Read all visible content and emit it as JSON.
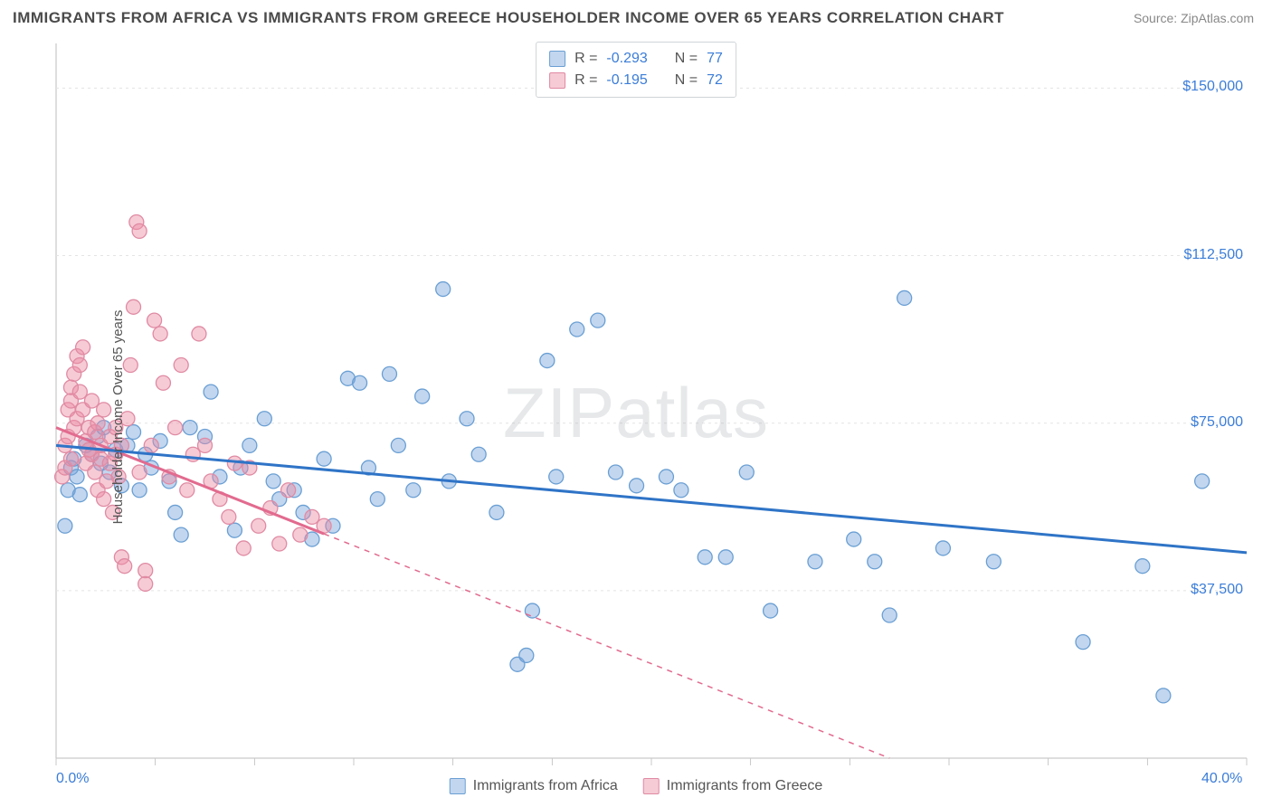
{
  "header": {
    "title": "IMMIGRANTS FROM AFRICA VS IMMIGRANTS FROM GREECE HOUSEHOLDER INCOME OVER 65 YEARS CORRELATION CHART",
    "source_label": "Source:",
    "source_name": "ZipAtlas.com"
  },
  "watermark": "ZIPatlas",
  "chart": {
    "type": "scatter",
    "ylabel": "Householder Income Over 65 years",
    "xlim": [
      0,
      40
    ],
    "ylim": [
      0,
      160000
    ],
    "x_ticks": [
      0,
      40
    ],
    "x_tick_labels": [
      "0.0%",
      "40.0%"
    ],
    "x_minor_ticks": [
      3.33,
      6.67,
      10,
      13.33,
      16.67,
      20,
      23.33,
      26.67,
      30,
      33.33,
      36.67
    ],
    "y_ticks": [
      37500,
      75000,
      112500,
      150000
    ],
    "y_tick_labels": [
      "$37,500",
      "$75,000",
      "$112,500",
      "$150,000"
    ],
    "background_color": "#ffffff",
    "grid_color": "#e4e4e4",
    "axis_color": "#c9c9c9",
    "label_color": "#3b7dd8",
    "series": [
      {
        "name": "Immigrants from Africa",
        "fill_color": "rgba(120,165,220,0.45)",
        "stroke_color": "#6a9fd4",
        "line_color": "#2f74c7",
        "marker_radius": 8,
        "r_value": "-0.293",
        "n_value": "77",
        "trend": {
          "x1": 0,
          "y1": 70000,
          "x2": 40,
          "y2": 46000,
          "solid_until_x": 40
        },
        "points": [
          [
            0.3,
            52000
          ],
          [
            0.4,
            60000
          ],
          [
            0.5,
            65000
          ],
          [
            0.6,
            67000
          ],
          [
            0.7,
            63000
          ],
          [
            0.8,
            59000
          ],
          [
            1.0,
            70000
          ],
          [
            1.2,
            68000
          ],
          [
            1.4,
            72000
          ],
          [
            1.5,
            66000
          ],
          [
            1.6,
            74000
          ],
          [
            1.8,
            64000
          ],
          [
            2.0,
            69000
          ],
          [
            2.2,
            61000
          ],
          [
            2.4,
            70000
          ],
          [
            2.6,
            73000
          ],
          [
            2.8,
            60000
          ],
          [
            3.0,
            68000
          ],
          [
            3.2,
            65000
          ],
          [
            3.5,
            71000
          ],
          [
            3.8,
            62000
          ],
          [
            4.0,
            55000
          ],
          [
            4.2,
            50000
          ],
          [
            4.5,
            74000
          ],
          [
            5.0,
            72000
          ],
          [
            5.2,
            82000
          ],
          [
            5.5,
            63000
          ],
          [
            6.0,
            51000
          ],
          [
            6.2,
            65000
          ],
          [
            6.5,
            70000
          ],
          [
            7.0,
            76000
          ],
          [
            7.3,
            62000
          ],
          [
            7.5,
            58000
          ],
          [
            8.0,
            60000
          ],
          [
            8.3,
            55000
          ],
          [
            8.6,
            49000
          ],
          [
            9.0,
            67000
          ],
          [
            9.3,
            52000
          ],
          [
            9.8,
            85000
          ],
          [
            10.2,
            84000
          ],
          [
            10.5,
            65000
          ],
          [
            10.8,
            58000
          ],
          [
            11.2,
            86000
          ],
          [
            11.5,
            70000
          ],
          [
            12.0,
            60000
          ],
          [
            12.3,
            81000
          ],
          [
            13.0,
            105000
          ],
          [
            13.2,
            62000
          ],
          [
            13.8,
            76000
          ],
          [
            14.2,
            68000
          ],
          [
            14.8,
            55000
          ],
          [
            15.5,
            21000
          ],
          [
            15.8,
            23000
          ],
          [
            16.0,
            33000
          ],
          [
            16.5,
            89000
          ],
          [
            16.8,
            63000
          ],
          [
            17.5,
            96000
          ],
          [
            18.2,
            98000
          ],
          [
            18.8,
            64000
          ],
          [
            19.5,
            61000
          ],
          [
            20.5,
            63000
          ],
          [
            21.0,
            60000
          ],
          [
            21.8,
            45000
          ],
          [
            22.5,
            45000
          ],
          [
            23.2,
            64000
          ],
          [
            24.0,
            33000
          ],
          [
            25.5,
            44000
          ],
          [
            26.8,
            49000
          ],
          [
            27.5,
            44000
          ],
          [
            28.0,
            32000
          ],
          [
            28.5,
            103000
          ],
          [
            29.8,
            47000
          ],
          [
            31.5,
            44000
          ],
          [
            34.5,
            26000
          ],
          [
            36.5,
            43000
          ],
          [
            37.2,
            14000
          ],
          [
            38.5,
            62000
          ]
        ]
      },
      {
        "name": "Immigrants from Greece",
        "fill_color": "rgba(235,140,165,0.45)",
        "stroke_color": "#e08aa3",
        "line_color": "#e26b8f",
        "marker_radius": 8,
        "r_value": "-0.195",
        "n_value": "72",
        "trend": {
          "x1": 0,
          "y1": 74000,
          "x2": 28,
          "y2": 0,
          "solid_until_x": 9
        },
        "points": [
          [
            0.2,
            63000
          ],
          [
            0.3,
            65000
          ],
          [
            0.3,
            70000
          ],
          [
            0.4,
            72000
          ],
          [
            0.4,
            78000
          ],
          [
            0.5,
            80000
          ],
          [
            0.5,
            83000
          ],
          [
            0.5,
            67000
          ],
          [
            0.6,
            86000
          ],
          [
            0.6,
            74000
          ],
          [
            0.7,
            90000
          ],
          [
            0.7,
            76000
          ],
          [
            0.8,
            82000
          ],
          [
            0.8,
            88000
          ],
          [
            0.9,
            78000
          ],
          [
            0.9,
            92000
          ],
          [
            1.0,
            66000
          ],
          [
            1.0,
            71000
          ],
          [
            1.1,
            69000
          ],
          [
            1.1,
            74000
          ],
          [
            1.2,
            80000
          ],
          [
            1.2,
            68000
          ],
          [
            1.3,
            73000
          ],
          [
            1.3,
            64000
          ],
          [
            1.4,
            60000
          ],
          [
            1.4,
            75000
          ],
          [
            1.5,
            67000
          ],
          [
            1.5,
            70000
          ],
          [
            1.6,
            78000
          ],
          [
            1.6,
            58000
          ],
          [
            1.7,
            62000
          ],
          [
            1.8,
            66000
          ],
          [
            1.8,
            72000
          ],
          [
            1.9,
            55000
          ],
          [
            2.0,
            68000
          ],
          [
            2.0,
            74000
          ],
          [
            2.1,
            63000
          ],
          [
            2.2,
            70000
          ],
          [
            2.2,
            45000
          ],
          [
            2.3,
            43000
          ],
          [
            2.4,
            76000
          ],
          [
            2.5,
            88000
          ],
          [
            2.6,
            101000
          ],
          [
            2.7,
            120000
          ],
          [
            2.8,
            118000
          ],
          [
            2.8,
            64000
          ],
          [
            3.0,
            42000
          ],
          [
            3.0,
            39000
          ],
          [
            3.2,
            70000
          ],
          [
            3.3,
            98000
          ],
          [
            3.5,
            95000
          ],
          [
            3.6,
            84000
          ],
          [
            3.8,
            63000
          ],
          [
            4.0,
            74000
          ],
          [
            4.2,
            88000
          ],
          [
            4.4,
            60000
          ],
          [
            4.6,
            68000
          ],
          [
            4.8,
            95000
          ],
          [
            5.0,
            70000
          ],
          [
            5.2,
            62000
          ],
          [
            5.5,
            58000
          ],
          [
            5.8,
            54000
          ],
          [
            6.0,
            66000
          ],
          [
            6.3,
            47000
          ],
          [
            6.5,
            65000
          ],
          [
            6.8,
            52000
          ],
          [
            7.2,
            56000
          ],
          [
            7.5,
            48000
          ],
          [
            7.8,
            60000
          ],
          [
            8.2,
            50000
          ],
          [
            8.6,
            54000
          ],
          [
            9.0,
            52000
          ]
        ]
      }
    ],
    "bottom_legend": [
      {
        "label": "Immigrants from Africa",
        "fill": "rgba(120,165,220,0.45)",
        "border": "#6a9fd4"
      },
      {
        "label": "Immigrants from Greece",
        "fill": "rgba(235,140,165,0.45)",
        "border": "#e08aa3"
      }
    ]
  }
}
